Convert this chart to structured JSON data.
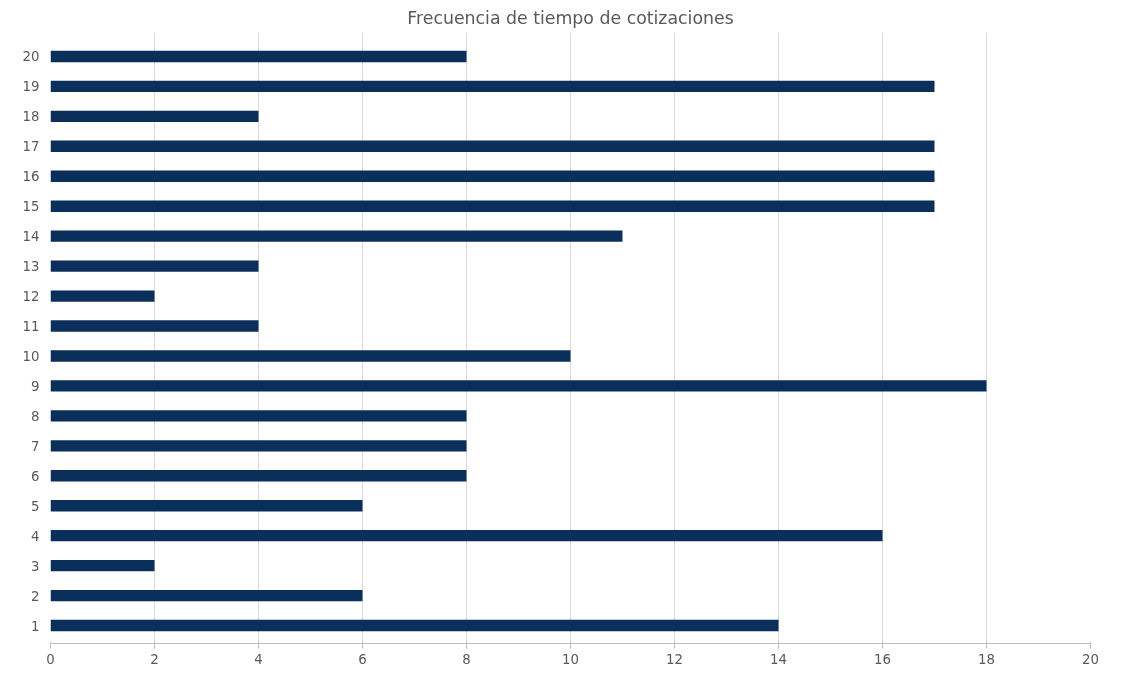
{
  "chart_data": {
    "type": "bar",
    "orientation": "horizontal",
    "title": "Frecuencia de tiempo de cotizaciones",
    "categories": [
      "20",
      "19",
      "18",
      "17",
      "16",
      "15",
      "14",
      "13",
      "12",
      "11",
      "10",
      "9",
      "8",
      "7",
      "6",
      "5",
      "4",
      "3",
      "2",
      "1"
    ],
    "values": [
      8,
      17,
      4,
      17,
      17,
      17,
      11,
      4,
      2,
      4,
      10,
      18,
      8,
      8,
      8,
      6,
      16,
      2,
      6,
      14
    ],
    "color": "#0b2f5b",
    "xlim": [
      0,
      20
    ],
    "xticks": [
      0,
      2,
      4,
      6,
      8,
      10,
      12,
      14,
      16,
      18,
      20
    ],
    "grid": "x"
  }
}
